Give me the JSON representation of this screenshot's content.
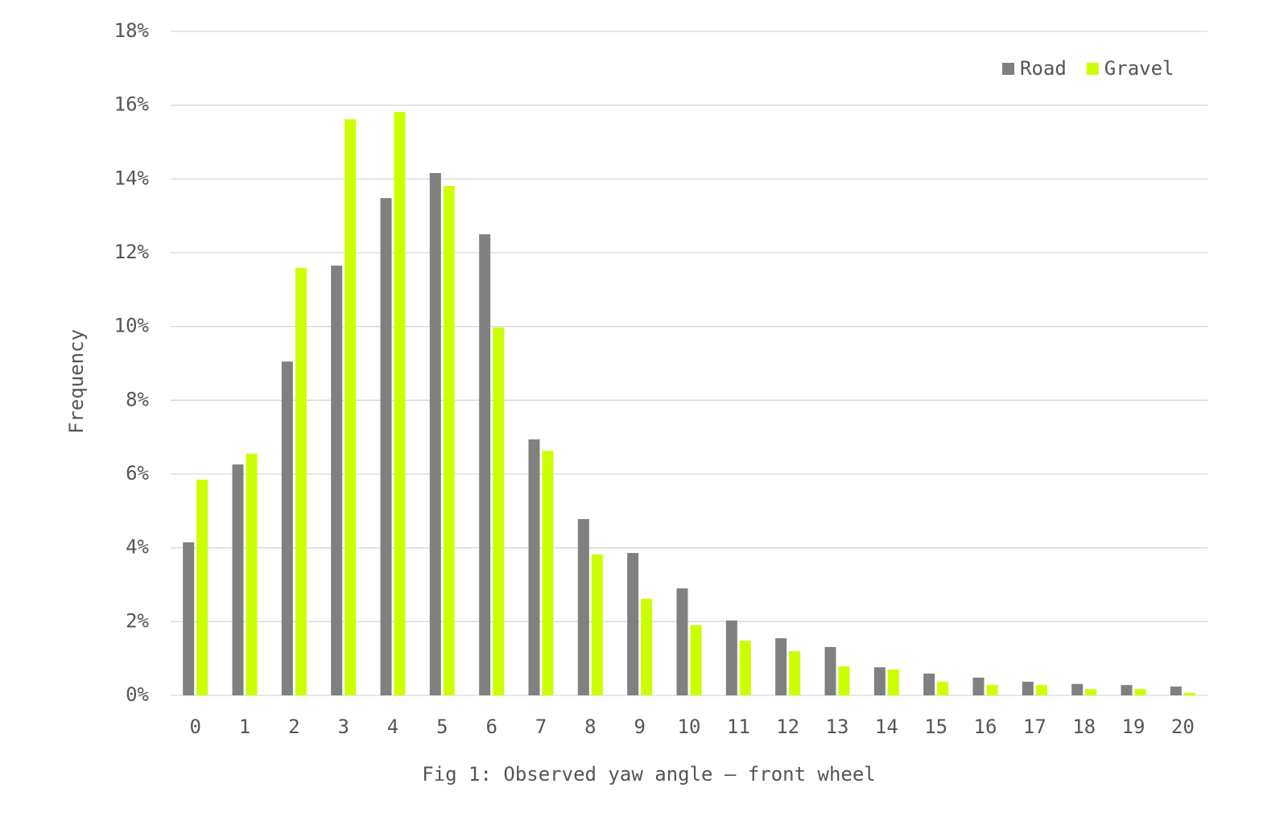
{
  "chart_data": {
    "type": "bar",
    "title": "Fig 1: Observed yaw angle — front wheel",
    "y_label": "Frequency",
    "categories": [
      "0",
      "1",
      "2",
      "3",
      "4",
      "5",
      "6",
      "7",
      "8",
      "9",
      "10",
      "11",
      "12",
      "13",
      "14",
      "15",
      "16",
      "17",
      "18",
      "19",
      "20"
    ],
    "series": [
      {
        "name": "Road",
        "color": "#808080",
        "values": [
          4.15,
          6.26,
          9.05,
          11.65,
          13.48,
          14.16,
          12.5,
          6.94,
          4.78,
          3.86,
          2.9,
          2.03,
          1.55,
          1.31,
          0.76,
          0.59,
          0.48,
          0.37,
          0.31,
          0.28,
          0.24
        ]
      },
      {
        "name": "Gravel",
        "color": "#ccff00",
        "values": [
          5.85,
          6.55,
          11.59,
          15.62,
          15.82,
          13.81,
          9.97,
          6.63,
          3.82,
          2.62,
          1.9,
          1.48,
          1.2,
          0.79,
          0.7,
          0.37,
          0.28,
          0.28,
          0.17,
          0.17,
          0.07
        ]
      }
    ],
    "ylim": [
      0,
      18
    ],
    "yticks": [
      {
        "value": 0,
        "label": "0%"
      },
      {
        "value": 2,
        "label": "2%"
      },
      {
        "value": 4,
        "label": "4%"
      },
      {
        "value": 6,
        "label": "6%"
      },
      {
        "value": 8,
        "label": "8%"
      },
      {
        "value": 10,
        "label": "10%"
      },
      {
        "value": 12,
        "label": "12%"
      },
      {
        "value": 14,
        "label": "14%"
      },
      {
        "value": 16,
        "label": "16%"
      },
      {
        "value": 18,
        "label": "18%"
      }
    ],
    "grid": true,
    "legend": "top-right"
  }
}
